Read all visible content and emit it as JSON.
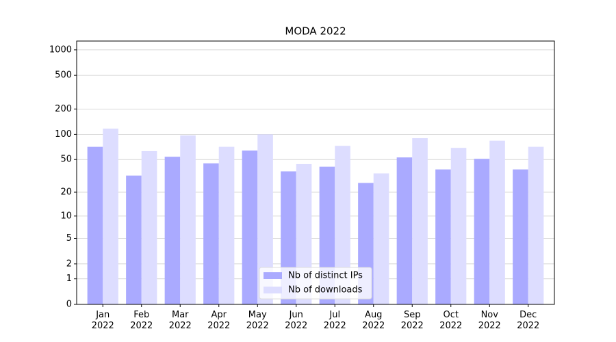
{
  "chart_data": {
    "type": "bar",
    "title": "MODA 2022",
    "categories": [
      "Jan\n2022",
      "Feb\n2022",
      "Mar\n2022",
      "Apr\n2022",
      "May\n2022",
      "Jun\n2022",
      "Jul\n2022",
      "Aug\n2022",
      "Sep\n2022",
      "Oct\n2022",
      "Nov\n2022",
      "Dec\n2022"
    ],
    "series": [
      {
        "name": "Nb of distinct IPs",
        "color": "#aaaaff",
        "values": [
          71,
          32,
          54,
          45,
          64,
          36,
          41,
          26,
          53,
          38,
          51,
          38
        ]
      },
      {
        "name": "Nb of downloads",
        "color": "#ddddff",
        "values": [
          117,
          63,
          97,
          71,
          100,
          44,
          73,
          34,
          90,
          69,
          84,
          71
        ]
      }
    ],
    "yscale": "log1p",
    "ylim": [
      0,
      1270
    ],
    "yticks": [
      0,
      1,
      2,
      5,
      10,
      20,
      50,
      100,
      200,
      500,
      1000
    ],
    "grid": true,
    "legend": "lower center"
  }
}
